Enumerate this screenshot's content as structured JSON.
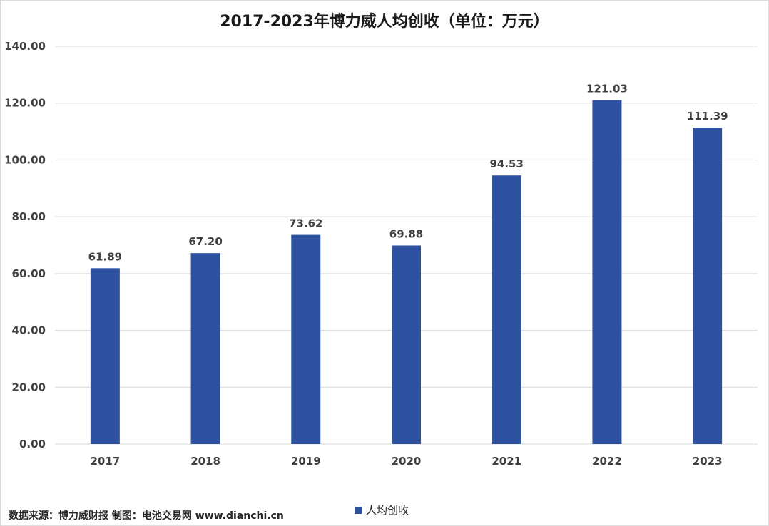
{
  "colors": {
    "bar": "#2E52A0",
    "grid": "#d9d9d9"
  },
  "source_note": "数据来源：博力威财报 制图：电池交易网 www.dianchi.cn",
  "chart_data": {
    "type": "bar",
    "title": "2017-2023年博力威人均创收（单位：万元）",
    "categories": [
      "2017",
      "2018",
      "2019",
      "2020",
      "2021",
      "2022",
      "2023"
    ],
    "series": [
      {
        "name": "人均创收",
        "values": [
          61.89,
          67.2,
          73.62,
          69.88,
          94.53,
          121.03,
          111.39
        ]
      }
    ],
    "data_labels": [
      "61.89",
      "67.20",
      "73.62",
      "69.88",
      "94.53",
      "121.03",
      "111.39"
    ],
    "ylim": [
      0,
      140
    ],
    "yticks": [
      0,
      20,
      40,
      60,
      80,
      100,
      120,
      140
    ],
    "ytick_labels": [
      "0.00",
      "20.00",
      "40.00",
      "60.00",
      "80.00",
      "100.00",
      "120.00",
      "140.00"
    ],
    "grid": true,
    "legend_position": "bottom"
  }
}
